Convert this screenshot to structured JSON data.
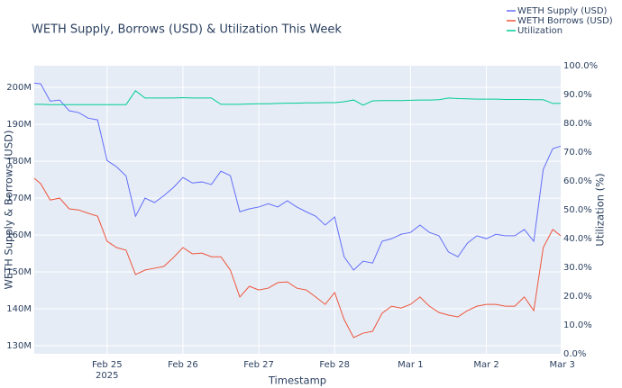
{
  "chart_data": {
    "type": "line",
    "title": "WETH Supply, Borrows (USD) & Utilization This Week",
    "x_label": "Timestamp",
    "y_label": "WETH Supply & Borrows (USD)",
    "y2_label": "Utilization (%)",
    "x": [
      -0.96,
      -0.875,
      -0.75,
      -0.625,
      -0.5,
      -0.375,
      -0.25,
      -0.125,
      0,
      0.125,
      0.25,
      0.375,
      0.5,
      0.625,
      0.75,
      0.875,
      1.0,
      1.125,
      1.25,
      1.375,
      1.5,
      1.625,
      1.75,
      1.875,
      2.0,
      2.125,
      2.25,
      2.375,
      2.5,
      2.625,
      2.75,
      2.875,
      3.0,
      3.125,
      3.25,
      3.375,
      3.5,
      3.625,
      3.75,
      3.875,
      4.0,
      4.125,
      4.25,
      4.375,
      4.5,
      4.625,
      4.75,
      4.875,
      5.0,
      5.125,
      5.25,
      5.375,
      5.5,
      5.625,
      5.75,
      5.875,
      5.98
    ],
    "series": [
      {
        "name": "WETH Supply (USD)",
        "color": "#636efa",
        "values": [
          201200000,
          201000000,
          196300000,
          196600000,
          193700000,
          193200000,
          191700000,
          191200000,
          180200000,
          178500000,
          176000000,
          165100000,
          170000000,
          168800000,
          170700000,
          172900000,
          175600000,
          174100000,
          174400000,
          173700000,
          177300000,
          176100000,
          166300000,
          167100000,
          167600000,
          168500000,
          167600000,
          169300000,
          167600000,
          166300000,
          165100000,
          162700000,
          164900000,
          154100000,
          150500000,
          152900000,
          152400000,
          158300000,
          159000000,
          160200000,
          160700000,
          162700000,
          160700000,
          159800000,
          155400000,
          154100000,
          157800000,
          159800000,
          159000000,
          160200000,
          159800000,
          159800000,
          161500000,
          158300000,
          177800000,
          183400000,
          184100000
        ]
      },
      {
        "name": "WETH Borrows (USD)",
        "color": "#EF553B",
        "values": [
          175400000,
          173900000,
          169500000,
          170000000,
          167100000,
          166800000,
          165900000,
          165100000,
          158300000,
          156600000,
          155900000,
          149300000,
          150500000,
          151000000,
          151500000,
          153900000,
          156600000,
          154900000,
          155100000,
          154100000,
          154100000,
          150500000,
          143200000,
          146100000,
          145100000,
          145600000,
          147100000,
          147300000,
          145600000,
          145100000,
          143200000,
          141200000,
          144400000,
          137100000,
          132200000,
          133400000,
          133900000,
          138800000,
          140700000,
          140200000,
          141200000,
          143200000,
          140700000,
          139000000,
          138300000,
          137800000,
          139500000,
          140700000,
          141200000,
          141200000,
          140700000,
          140700000,
          143200000,
          139500000,
          156600000,
          161500000,
          159800000
        ]
      },
      {
        "name": "Utilization",
        "color": "#00cc96",
        "axis": "y2",
        "values": [
          86.6,
          86.6,
          86.5,
          86.5,
          86.5,
          86.5,
          86.5,
          86.5,
          86.5,
          86.5,
          86.5,
          91.3,
          88.8,
          88.8,
          88.8,
          88.8,
          88.9,
          88.8,
          88.8,
          88.8,
          86.6,
          86.6,
          86.6,
          86.7,
          86.8,
          86.8,
          86.9,
          87.0,
          87.0,
          87.1,
          87.1,
          87.2,
          87.2,
          87.5,
          88.1,
          86.3,
          87.8,
          87.9,
          87.9,
          87.9,
          88.0,
          88.1,
          88.1,
          88.2,
          88.8,
          88.6,
          88.5,
          88.4,
          88.4,
          88.4,
          88.3,
          88.3,
          88.3,
          88.2,
          88.2,
          86.9,
          86.9
        ]
      }
    ],
    "xlim": [
      -0.96,
      5.98
    ],
    "xticks": [
      {
        "value": 0,
        "label": "Feb 25\n2025"
      },
      {
        "value": 1,
        "label": "Feb 26"
      },
      {
        "value": 2,
        "label": "Feb 27"
      },
      {
        "value": 3,
        "label": "Feb 28"
      },
      {
        "value": 4,
        "label": "Mar 1"
      },
      {
        "value": 5,
        "label": "Mar 2"
      },
      {
        "value": 6,
        "label": "Mar 3"
      }
    ],
    "ylim": [
      127800000,
      205900000
    ],
    "yticks": [
      {
        "value": 130000000,
        "label": "130M"
      },
      {
        "value": 140000000,
        "label": "140M"
      },
      {
        "value": 150000000,
        "label": "150M"
      },
      {
        "value": 160000000,
        "label": "160M"
      },
      {
        "value": 170000000,
        "label": "170M"
      },
      {
        "value": 180000000,
        "label": "180M"
      },
      {
        "value": 190000000,
        "label": "190M"
      },
      {
        "value": 200000000,
        "label": "200M"
      }
    ],
    "y2lim": [
      0,
      100
    ],
    "y2ticks": [
      {
        "value": 0,
        "label": "0.0%"
      },
      {
        "value": 10,
        "label": "10.0%"
      },
      {
        "value": 20,
        "label": "20.0%"
      },
      {
        "value": 30,
        "label": "30.0%"
      },
      {
        "value": 40,
        "label": "40.0%"
      },
      {
        "value": 50,
        "label": "50.0%"
      },
      {
        "value": 60,
        "label": "60.0%"
      },
      {
        "value": 70,
        "label": "70.0%"
      },
      {
        "value": 80,
        "label": "80.0%"
      },
      {
        "value": 90,
        "label": "90.0%"
      },
      {
        "value": 100,
        "label": "100.0%"
      }
    ],
    "grid": true,
    "legend": "top-right"
  }
}
